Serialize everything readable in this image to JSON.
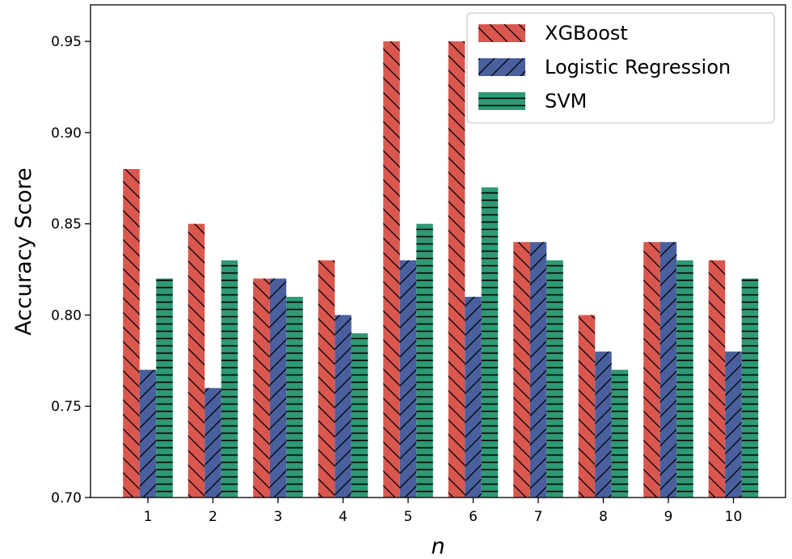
{
  "chart_data": {
    "type": "bar",
    "title": "",
    "xlabel": "n",
    "ylabel": "Accuracy Score",
    "categories": [
      "1",
      "2",
      "3",
      "4",
      "5",
      "6",
      "7",
      "8",
      "9",
      "10"
    ],
    "ylim": [
      0.7,
      0.97
    ],
    "yticks": [
      "0.70",
      "0.75",
      "0.80",
      "0.85",
      "0.90",
      "0.95"
    ],
    "legend_position": "top-right",
    "series": [
      {
        "name": "XGBoost",
        "color": "#d9574f",
        "hatch": "backslash",
        "values": [
          0.88,
          0.85,
          0.82,
          0.83,
          0.95,
          0.95,
          0.84,
          0.8,
          0.84,
          0.83
        ]
      },
      {
        "name": "Logistic Regression",
        "color": "#4a5f9e",
        "hatch": "slash",
        "values": [
          0.77,
          0.76,
          0.82,
          0.8,
          0.83,
          0.81,
          0.84,
          0.78,
          0.84,
          0.78
        ]
      },
      {
        "name": "SVM",
        "color": "#2e9a74",
        "hatch": "horizontal",
        "values": [
          0.82,
          0.83,
          0.81,
          0.79,
          0.85,
          0.87,
          0.83,
          0.77,
          0.83,
          0.82
        ]
      }
    ]
  }
}
